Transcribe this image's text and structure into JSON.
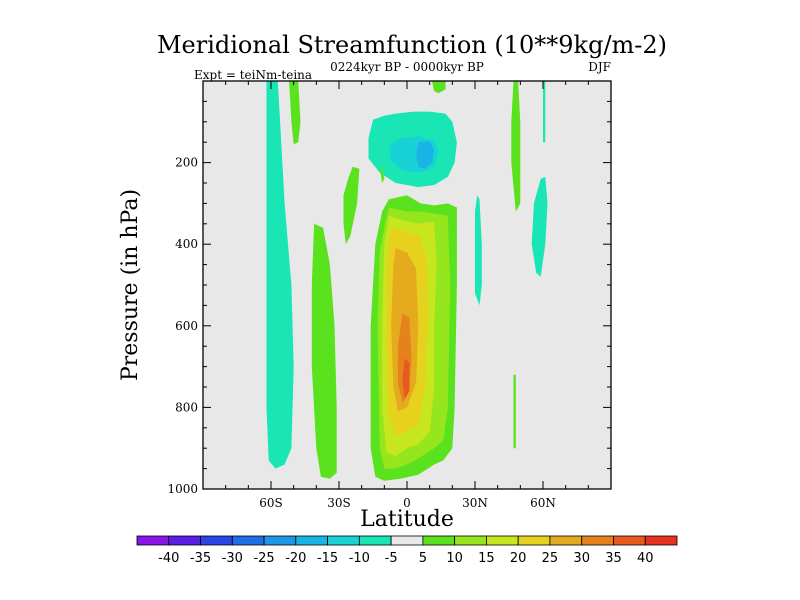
{
  "chart_data": {
    "type": "contour",
    "title": "Meridional Streamfunction (10**9kg/m-2)",
    "subtitle_left": "Expt = teiNm-teina",
    "subtitle_center": "0224kyr BP - 0000kyr BP",
    "subtitle_right": "DJF",
    "xlabel": "Latitude",
    "ylabel": "Pressure (in hPa)",
    "xlim": [
      -90,
      90
    ],
    "ylim": [
      1000,
      0
    ],
    "x_ticks": [
      {
        "value": -60,
        "label": "60S"
      },
      {
        "value": -30,
        "label": "30S"
      },
      {
        "value": 0,
        "label": "0"
      },
      {
        "value": 30,
        "label": "30N"
      },
      {
        "value": 60,
        "label": "60N"
      }
    ],
    "y_ticks": [
      {
        "value": 200,
        "label": "200"
      },
      {
        "value": 400,
        "label": "400"
      },
      {
        "value": 600,
        "label": "600"
      },
      {
        "value": 800,
        "label": "800"
      },
      {
        "value": 1000,
        "label": "1000"
      }
    ],
    "colorbar": {
      "labels": [
        "-40",
        "-35",
        "-30",
        "-25",
        "-20",
        "-15",
        "-10",
        "-5",
        "5",
        "10",
        "15",
        "20",
        "25",
        "30",
        "35",
        "40"
      ],
      "colors": [
        "#8a14e6",
        "#5a1ee6",
        "#2a44e6",
        "#1e6ee6",
        "#1e96e6",
        "#19b4e6",
        "#19d2d6",
        "#19e6b4",
        "#e8e8e8",
        "#5ae21e",
        "#96e61e",
        "#c8e61e",
        "#e6d21e",
        "#e6aa1e",
        "#e6821e",
        "#e65a1e",
        "#e6321e"
      ]
    },
    "background_color": "#e8e8e8",
    "regions": [
      {
        "level": "-5",
        "pts": [
          [
            -62,
            0
          ],
          [
            -57,
            0
          ],
          [
            -56,
            100
          ],
          [
            -54,
            300
          ],
          [
            -51,
            500
          ],
          [
            -50,
            700
          ],
          [
            -51,
            900
          ],
          [
            -54,
            940
          ],
          [
            -58,
            950
          ],
          [
            -61,
            930
          ],
          [
            -62,
            800
          ],
          [
            -62,
            600
          ],
          [
            -62,
            300
          ]
        ]
      },
      {
        "level": "-5",
        "pts": [
          [
            -15,
            95
          ],
          [
            -10,
            85
          ],
          [
            -5,
            80
          ],
          [
            3,
            75
          ],
          [
            10,
            75
          ],
          [
            17,
            80
          ],
          [
            20,
            100
          ],
          [
            22,
            150
          ],
          [
            21,
            200
          ],
          [
            18,
            235
          ],
          [
            12,
            255
          ],
          [
            5,
            260
          ],
          [
            -5,
            250
          ],
          [
            -12,
            225
          ],
          [
            -17,
            190
          ],
          [
            -17,
            140
          ]
        ]
      },
      {
        "level": "-10",
        "pts": [
          [
            -8,
            160
          ],
          [
            -3,
            140
          ],
          [
            5,
            135
          ],
          [
            12,
            145
          ],
          [
            14,
            175
          ],
          [
            12,
            210
          ],
          [
            6,
            225
          ],
          [
            -2,
            220
          ],
          [
            -7,
            195
          ]
        ]
      },
      {
        "level": "-15",
        "pts": [
          [
            5,
            150
          ],
          [
            10,
            148
          ],
          [
            12,
            170
          ],
          [
            11,
            200
          ],
          [
            8,
            215
          ],
          [
            5,
            210
          ],
          [
            4,
            180
          ]
        ]
      },
      {
        "level": "-5",
        "pts": [
          [
            31,
            280
          ],
          [
            32,
            290
          ],
          [
            33,
            400
          ],
          [
            33,
            500
          ],
          [
            32,
            550
          ],
          [
            30,
            520
          ],
          [
            30,
            400
          ],
          [
            30,
            320
          ]
        ]
      },
      {
        "level": "-5",
        "pts": [
          [
            59,
            240
          ],
          [
            61,
            235
          ],
          [
            62,
            300
          ],
          [
            61,
            400
          ],
          [
            59,
            480
          ],
          [
            57,
            470
          ],
          [
            55,
            400
          ],
          [
            56,
            300
          ]
        ]
      },
      {
        "level": "-5",
        "pts": [
          [
            60,
            0
          ],
          [
            61,
            0
          ],
          [
            61,
            150
          ],
          [
            60,
            150
          ]
        ]
      },
      {
        "level": "5",
        "pts": [
          [
            -52,
            0
          ],
          [
            -48,
            0
          ],
          [
            -47,
            100
          ],
          [
            -48,
            150
          ],
          [
            -50,
            155
          ],
          [
            -51,
            100
          ]
        ]
      },
      {
        "level": "5",
        "pts": [
          [
            -24,
            210
          ],
          [
            -21,
            215
          ],
          [
            -22,
            300
          ],
          [
            -25,
            380
          ],
          [
            -27,
            400
          ],
          [
            -28,
            350
          ],
          [
            -28,
            280
          ],
          [
            -26,
            240
          ]
        ]
      },
      {
        "level": "5",
        "pts": [
          [
            -41,
            350
          ],
          [
            -37,
            360
          ],
          [
            -34,
            450
          ],
          [
            -32,
            600
          ],
          [
            -31,
            800
          ],
          [
            -31,
            960
          ],
          [
            -34,
            975
          ],
          [
            -38,
            970
          ],
          [
            -40,
            900
          ],
          [
            -42,
            700
          ],
          [
            -42,
            500
          ]
        ]
      },
      {
        "level": "5",
        "pts": [
          [
            -12,
            210
          ],
          [
            -11,
            215
          ],
          [
            -10,
            240
          ],
          [
            -11,
            250
          ]
        ]
      },
      {
        "level": "5",
        "pts": [
          [
            -8,
            290
          ],
          [
            0,
            280
          ],
          [
            6,
            300
          ],
          [
            12,
            305
          ],
          [
            18,
            300
          ],
          [
            22,
            310
          ],
          [
            22,
            500
          ],
          [
            21,
            800
          ],
          [
            20,
            900
          ],
          [
            16,
            930
          ],
          [
            12,
            940
          ],
          [
            5,
            965
          ],
          [
            -3,
            975
          ],
          [
            -10,
            980
          ],
          [
            -14,
            970
          ],
          [
            -16,
            900
          ],
          [
            -16,
            600
          ],
          [
            -14,
            400
          ],
          [
            -11,
            320
          ]
        ]
      },
      {
        "level": "5",
        "pts": [
          [
            11,
            0
          ],
          [
            17,
            0
          ],
          [
            17,
            20
          ],
          [
            14,
            30
          ],
          [
            12,
            25
          ]
        ]
      },
      {
        "level": "5",
        "pts": [
          [
            47,
            0
          ],
          [
            49,
            0
          ],
          [
            50,
            100
          ],
          [
            50,
            300
          ],
          [
            48,
            320
          ],
          [
            46,
            200
          ],
          [
            46,
            100
          ]
        ]
      },
      {
        "level": "5",
        "pts": [
          [
            47,
            720
          ],
          [
            48,
            720
          ],
          [
            48,
            900
          ],
          [
            47,
            900
          ]
        ]
      },
      {
        "level": "10",
        "pts": [
          [
            -8,
            310
          ],
          [
            0,
            320
          ],
          [
            6,
            320
          ],
          [
            12,
            325
          ],
          [
            18,
            330
          ],
          [
            19,
            500
          ],
          [
            18,
            800
          ],
          [
            16,
            880
          ],
          [
            12,
            900
          ],
          [
            5,
            925
          ],
          [
            0,
            940
          ],
          [
            -5,
            950
          ],
          [
            -10,
            950
          ],
          [
            -12,
            900
          ],
          [
            -13,
            600
          ],
          [
            -12,
            420
          ],
          [
            -10,
            360
          ]
        ]
      },
      {
        "level": "15",
        "pts": [
          [
            -8,
            330
          ],
          [
            -3,
            340
          ],
          [
            5,
            350
          ],
          [
            12,
            345
          ],
          [
            13,
            450
          ],
          [
            12,
            600
          ],
          [
            12,
            750
          ],
          [
            10,
            860
          ],
          [
            5,
            890
          ],
          [
            0,
            900
          ],
          [
            -5,
            920
          ],
          [
            -9,
            910
          ],
          [
            -11,
            800
          ],
          [
            -11,
            600
          ],
          [
            -10,
            400
          ]
        ]
      },
      {
        "level": "20",
        "pts": [
          [
            -7,
            360
          ],
          [
            0,
            370
          ],
          [
            6,
            380
          ],
          [
            9,
            450
          ],
          [
            9,
            600
          ],
          [
            8,
            750
          ],
          [
            5,
            840
          ],
          [
            0,
            860
          ],
          [
            -5,
            870
          ],
          [
            -8,
            820
          ],
          [
            -9,
            650
          ],
          [
            -9,
            450
          ]
        ]
      },
      {
        "level": "25",
        "pts": [
          [
            -5,
            410
          ],
          [
            0,
            420
          ],
          [
            4,
            460
          ],
          [
            5,
            600
          ],
          [
            4,
            740
          ],
          [
            0,
            800
          ],
          [
            -4,
            810
          ],
          [
            -6,
            750
          ],
          [
            -7,
            600
          ],
          [
            -6,
            450
          ]
        ]
      },
      {
        "level": "30",
        "pts": [
          [
            -2,
            570
          ],
          [
            1,
            580
          ],
          [
            2,
            680
          ],
          [
            1,
            760
          ],
          [
            -2,
            790
          ],
          [
            -4,
            740
          ],
          [
            -4,
            650
          ]
        ]
      },
      {
        "level": "35",
        "pts": [
          [
            -1,
            680
          ],
          [
            1,
            690
          ],
          [
            1,
            760
          ],
          [
            -1,
            780
          ],
          [
            -2,
            730
          ]
        ]
      }
    ]
  }
}
